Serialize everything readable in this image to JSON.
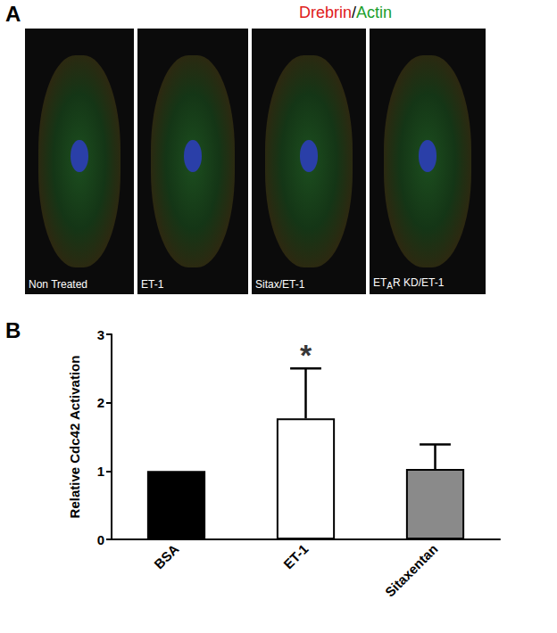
{
  "panel_a": {
    "letter": "A",
    "title": [
      {
        "text": "Drebrin",
        "color": "#e0201b"
      },
      {
        "text": "/",
        "color": "#000000"
      },
      {
        "text": "Actin",
        "color": "#1a9e2a"
      }
    ],
    "images": [
      [
        {
          "text": "Non Treated"
        }
      ],
      [
        {
          "text": "ET-1"
        }
      ],
      [
        {
          "text": "Sitax/ET-1"
        }
      ],
      [
        {
          "text": "ET"
        },
        {
          "text": "A",
          "sub": true
        },
        {
          "text": "R KD/ET-1"
        }
      ]
    ]
  },
  "chart_data": {
    "letter": "B",
    "type": "bar",
    "categories": [
      "BSA",
      "ET-1",
      "Sitaxentan"
    ],
    "values": [
      1.0,
      1.77,
      1.03
    ],
    "errors": [
      null,
      0.73,
      0.36
    ],
    "colors": [
      "#000000",
      "#ffffff",
      "#8a8a8a"
    ],
    "y_label": "Relative Cdc42 Activation",
    "ylim": [
      0,
      3
    ],
    "yticks": [
      0,
      1,
      2,
      3
    ],
    "annotations": [
      {
        "text": "*",
        "category": "ET-1"
      }
    ],
    "grid": false
  }
}
